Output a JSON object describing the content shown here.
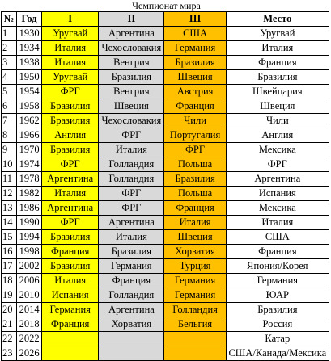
{
  "title": "Чемпионат мира",
  "colors": {
    "first_place": "#ffff00",
    "second_place": "#d9d9d9",
    "third_place": "#ffc000"
  },
  "headers": {
    "num": "№",
    "year": "Год",
    "first": "I",
    "second": "II",
    "third": "III",
    "place": "Место"
  },
  "rows": [
    {
      "num": "1",
      "year": "1930",
      "first": "Уругвай",
      "second": "Аргентина",
      "third": "США",
      "place": "Уругвай"
    },
    {
      "num": "2",
      "year": "1934",
      "first": "Италия",
      "second": "Чехословакия",
      "third": "Германия",
      "place": "Италия"
    },
    {
      "num": "3",
      "year": "1938",
      "first": "Италия",
      "second": "Венгрия",
      "third": "Бразилия",
      "place": "Франция"
    },
    {
      "num": "4",
      "year": "1950",
      "first": "Уругвай",
      "second": "Бразилия",
      "third": "Швеция",
      "place": "Бразилия"
    },
    {
      "num": "5",
      "year": "1954",
      "first": "ФРГ",
      "second": "Венгрия",
      "third": "Австрия",
      "place": "Швейцария"
    },
    {
      "num": "6",
      "year": "1958",
      "first": "Бразилия",
      "second": "Швеция",
      "third": "Франция",
      "place": "Швеция"
    },
    {
      "num": "7",
      "year": "1962",
      "first": "Бразилия",
      "second": "Чехословакия",
      "third": "Чили",
      "place": "Чили"
    },
    {
      "num": "8",
      "year": "1966",
      "first": "Англия",
      "second": "ФРГ",
      "third": "Португалия",
      "place": "Англия"
    },
    {
      "num": "9",
      "year": "1970",
      "first": "Бразилия",
      "second": "Италия",
      "third": "ФРГ",
      "place": "Мексика"
    },
    {
      "num": "10",
      "year": "1974",
      "first": "ФРГ",
      "second": "Голландия",
      "third": "Польша",
      "place": "ФРГ"
    },
    {
      "num": "11",
      "year": "1978",
      "first": "Аргентина",
      "second": "Голландия",
      "third": "Бразилия",
      "place": "Аргентина"
    },
    {
      "num": "12",
      "year": "1982",
      "first": "Италия",
      "second": "ФРГ",
      "third": "Польша",
      "place": "Испания"
    },
    {
      "num": "13",
      "year": "1986",
      "first": "Аргентина",
      "second": "ФРГ",
      "third": "Франция",
      "place": "Мексика"
    },
    {
      "num": "14",
      "year": "1990",
      "first": "ФРГ",
      "second": "Аргентина",
      "third": "Италия",
      "place": "Италия"
    },
    {
      "num": "15",
      "year": "1994",
      "first": "Бразилия",
      "second": "Италия",
      "third": "Швеция",
      "place": "США"
    },
    {
      "num": "16",
      "year": "1998",
      "first": "Франция",
      "second": "Бразилия",
      "third": "Хорватия",
      "place": "Франция"
    },
    {
      "num": "17",
      "year": "2002",
      "first": "Бразилия",
      "second": "Германия",
      "third": "Турция",
      "place": "Япония/Корея"
    },
    {
      "num": "18",
      "year": "2006",
      "first": "Италия",
      "second": "Франция",
      "third": "Германия",
      "place": "Германия"
    },
    {
      "num": "19",
      "year": "2010",
      "first": "Испания",
      "second": "Голландия",
      "third": "Германия",
      "place": "ЮАР"
    },
    {
      "num": "20",
      "year": "2014",
      "first": "Германия",
      "second": "Аргентина",
      "third": "Голландия",
      "place": "Бразилия"
    },
    {
      "num": "21",
      "year": "2018",
      "first": "Франция",
      "second": "Хорватия",
      "third": "Бельгия",
      "place": "Россия"
    },
    {
      "num": "22",
      "year": "2022",
      "first": "",
      "second": "",
      "third": "",
      "place": "Катар"
    },
    {
      "num": "23",
      "year": "2026",
      "first": "",
      "second": "",
      "third": "",
      "place": "США/Канада/Мексика"
    }
  ]
}
